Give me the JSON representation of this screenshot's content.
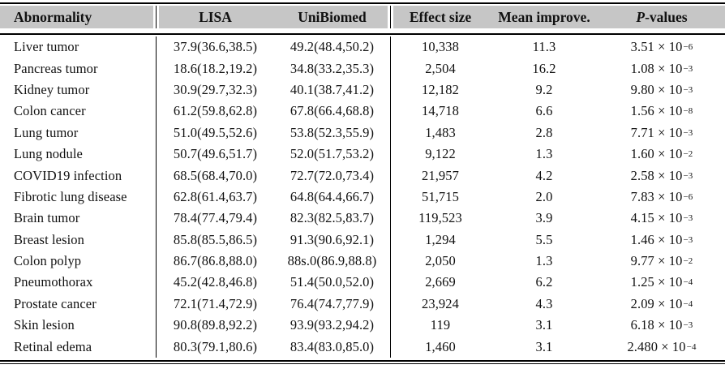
{
  "table": {
    "colors": {
      "header_bg": "#c6c6c6",
      "rule": "#000000",
      "text": "#111111"
    },
    "columns": [
      {
        "label": "Abnormality"
      },
      {
        "label": "LISA"
      },
      {
        "label": "UniBiomed"
      },
      {
        "label": "Effect size"
      },
      {
        "label": "Mean improve."
      },
      {
        "label": "P-values",
        "italic": "P",
        "rest": "-values"
      }
    ],
    "rows": [
      {
        "abnormality": "Liver tumor",
        "lisa": "37.9(36.6,38.5)",
        "unibiomed": "49.2(48.4,50.2)",
        "effect_size": "10,338",
        "mean_improve": "11.3",
        "p_base": "3.51 × 10",
        "p_exp": "−6"
      },
      {
        "abnormality": "Pancreas tumor",
        "lisa": "18.6(18.2,19.2)",
        "unibiomed": "34.8(33.2,35.3)",
        "effect_size": "2,504",
        "mean_improve": "16.2",
        "p_base": "1.08 × 10",
        "p_exp": "−3"
      },
      {
        "abnormality": "Kidney tumor",
        "lisa": "30.9(29.7,32.3)",
        "unibiomed": "40.1(38.7,41.2)",
        "effect_size": "12,182",
        "mean_improve": "9.2",
        "p_base": "9.80 × 10",
        "p_exp": "−3"
      },
      {
        "abnormality": "Colon cancer",
        "lisa": "61.2(59.8,62.8)",
        "unibiomed": "67.8(66.4,68.8)",
        "effect_size": "14,718",
        "mean_improve": "6.6",
        "p_base": "1.56 × 10",
        "p_exp": "−8"
      },
      {
        "abnormality": "Lung tumor",
        "lisa": "51.0(49.5,52.6)",
        "unibiomed": "53.8(52.3,55.9)",
        "effect_size": "1,483",
        "mean_improve": "2.8",
        "p_base": "7.71 × 10",
        "p_exp": "−3"
      },
      {
        "abnormality": "Lung nodule",
        "lisa": "50.7(49.6,51.7)",
        "unibiomed": "52.0(51.7,53.2)",
        "effect_size": "9,122",
        "mean_improve": "1.3",
        "p_base": "1.60 × 10",
        "p_exp": "−2"
      },
      {
        "abnormality": "COVID19 infection",
        "lisa": "68.5(68.4,70.0)",
        "unibiomed": "72.7(72.0,73.4)",
        "effect_size": "21,957",
        "mean_improve": "4.2",
        "p_base": "2.58 × 10",
        "p_exp": "−3"
      },
      {
        "abnormality": "Fibrotic lung disease",
        "lisa": "62.8(61.4,63.7)",
        "unibiomed": "64.8(64.4,66.7)",
        "effect_size": "51,715",
        "mean_improve": "2.0",
        "p_base": "7.83 × 10",
        "p_exp": "−6"
      },
      {
        "abnormality": "Brain tumor",
        "lisa": "78.4(77.4,79.4)",
        "unibiomed": "82.3(82.5,83.7)",
        "effect_size": "119,523",
        "mean_improve": "3.9",
        "p_base": "4.15 × 10",
        "p_exp": "−3"
      },
      {
        "abnormality": "Breast lesion",
        "lisa": "85.8(85.5,86.5)",
        "unibiomed": "91.3(90.6,92.1)",
        "effect_size": "1,294",
        "mean_improve": "5.5",
        "p_base": "1.46 × 10",
        "p_exp": "−3"
      },
      {
        "abnormality": "Colon polyp",
        "lisa": "86.7(86.8,88.0)",
        "unibiomed": "88s.0(86.9,88.8)",
        "effect_size": "2,050",
        "mean_improve": "1.3",
        "p_base": "9.77 × 10",
        "p_exp": "−2"
      },
      {
        "abnormality": "Pneumothorax",
        "lisa": "45.2(42.8,46.8)",
        "unibiomed": "51.4(50.0,52.0)",
        "effect_size": "2,669",
        "mean_improve": "6.2",
        "p_base": "1.25 × 10",
        "p_exp": "−4"
      },
      {
        "abnormality": "Prostate cancer",
        "lisa": "72.1(71.4,72.9)",
        "unibiomed": "76.4(74.7,77.9)",
        "effect_size": "23,924",
        "mean_improve": "4.3",
        "p_base": "2.09 × 10",
        "p_exp": "−4"
      },
      {
        "abnormality": "Skin lesion",
        "lisa": "90.8(89.8,92.2)",
        "unibiomed": "93.9(93.2,94.2)",
        "effect_size": "119",
        "mean_improve": "3.1",
        "p_base": "6.18 × 10",
        "p_exp": "−3"
      },
      {
        "abnormality": "Retinal edema",
        "lisa": "80.3(79.1,80.6)",
        "unibiomed": "83.4(83.0,85.0)",
        "effect_size": "1,460",
        "mean_improve": "3.1",
        "p_base": "2.480 × 10",
        "p_exp": "−4"
      }
    ]
  }
}
